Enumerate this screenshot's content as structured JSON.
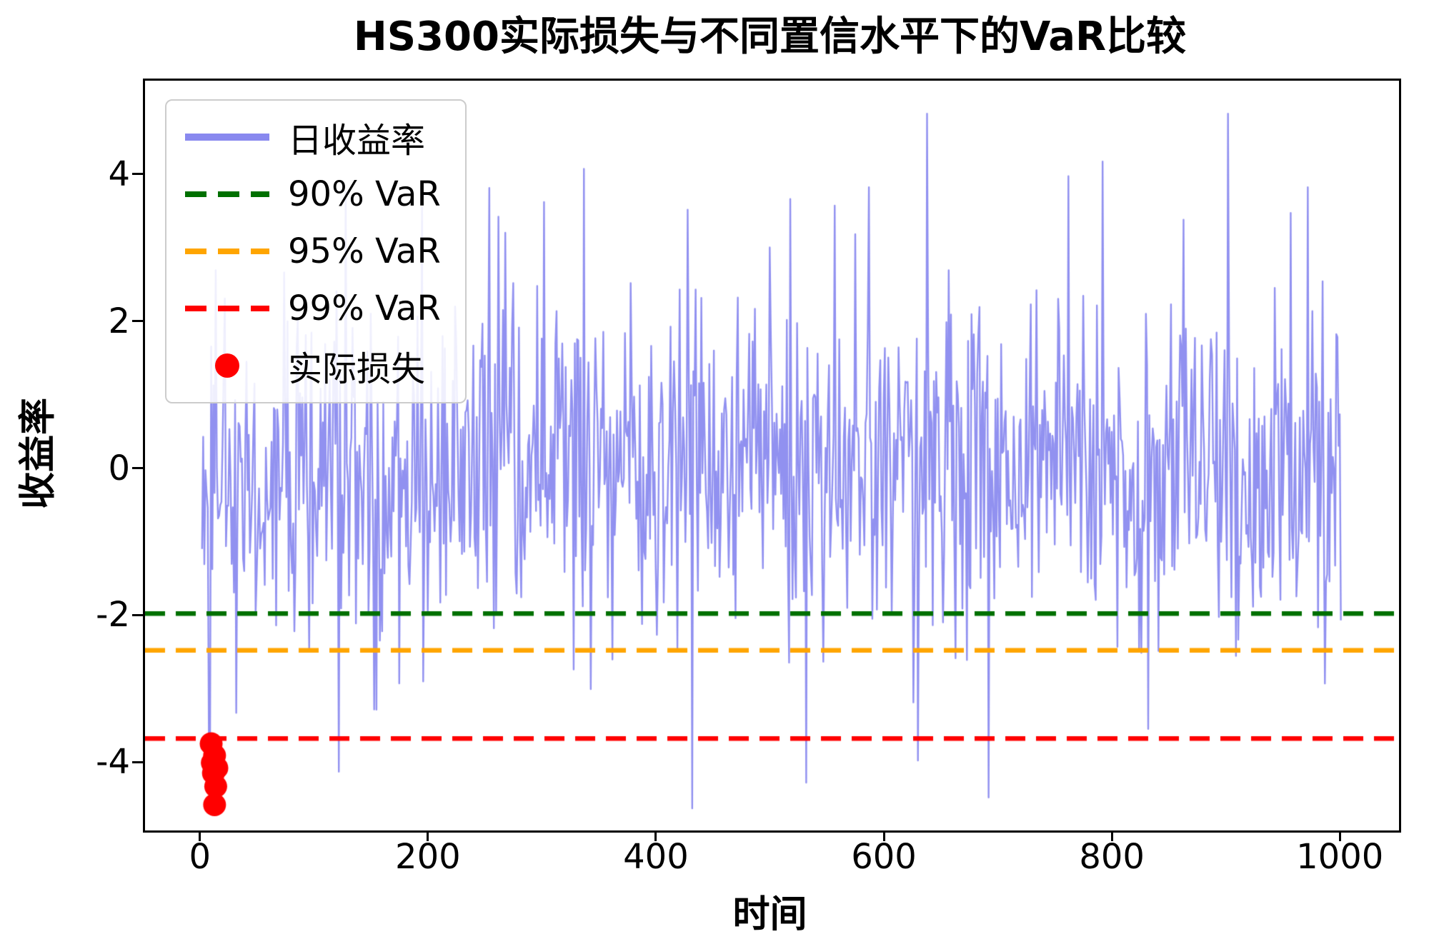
{
  "chart_data": {
    "type": "line",
    "title": "HS300实际损失与不同置信水平下的VaR比较",
    "xlabel": "时间",
    "ylabel": "收益率",
    "xlim": [
      -50,
      1050
    ],
    "ylim": [
      -4.9,
      5.3
    ],
    "xticks": [
      0,
      200,
      400,
      600,
      800,
      1000
    ],
    "yticks": [
      -4,
      -2,
      0,
      2,
      4
    ],
    "grid": false,
    "legend_position": "upper-left",
    "series": {
      "daily_returns": {
        "name": "日收益率",
        "color_rgba": "rgba(108,108,235,0.75)",
        "n": 1000,
        "mean": 0,
        "std": 1.12,
        "min": -4.6,
        "max": 4.85,
        "seed": 42,
        "line_width": 2.4,
        "highlights": [
          [
            30,
            -3.3
          ],
          [
            120,
            -4.1
          ],
          [
            260,
            3.45
          ],
          [
            300,
            3.65
          ],
          [
            335,
            4.1
          ],
          [
            430,
            -4.6
          ],
          [
            470,
            2.35
          ],
          [
            530,
            -4.25
          ],
          [
            555,
            3.6
          ],
          [
            585,
            3.85
          ],
          [
            690,
            -4.45
          ],
          [
            760,
            4.0
          ],
          [
            790,
            4.2
          ],
          [
            900,
            4.85
          ],
          [
            955,
            3.5
          ],
          [
            970,
            3.85
          ],
          [
            985,
            -2.9
          ]
        ]
      }
    },
    "var_lines": [
      {
        "label": "90% VaR",
        "value": -1.95,
        "color": "#007000"
      },
      {
        "label": "95% VaR",
        "value": -2.45,
        "color": "#ffa500"
      },
      {
        "label": "99% VaR",
        "value": -3.65,
        "color": "#ff0000"
      }
    ],
    "actual_losses": {
      "name": "实际损失",
      "color": "#ff0000",
      "marker_radius_px": 16,
      "points": [
        [
          8,
          -3.72
        ],
        [
          11,
          -3.88
        ],
        [
          9,
          -3.98
        ],
        [
          13,
          -4.05
        ],
        [
          10,
          -4.12
        ],
        [
          12,
          -4.3
        ],
        [
          11,
          -4.55
        ]
      ]
    },
    "legend": [
      {
        "type": "line",
        "color": "rgba(108,108,235,0.8)",
        "label": "日收益率"
      },
      {
        "type": "dashed",
        "color": "#007000",
        "label": "90% VaR"
      },
      {
        "type": "dashed",
        "color": "#ffa500",
        "label": "95% VaR"
      },
      {
        "type": "dashed",
        "color": "#ff0000",
        "label": "99% VaR"
      },
      {
        "type": "dot",
        "color": "#ff0000",
        "label": "实际损失"
      }
    ]
  }
}
